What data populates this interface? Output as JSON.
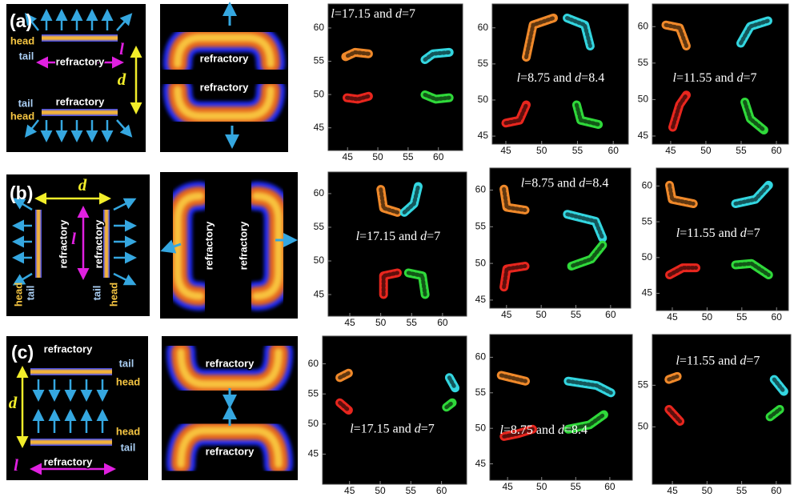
{
  "rows": [
    {
      "label": "(a)",
      "schematic": [
        "head",
        "tail",
        "refractory",
        "l",
        "d",
        "tail",
        "refractory",
        "head"
      ],
      "pattern": [
        "refractory",
        "refractory"
      ],
      "plots": [
        {
          "annotation": [
            {
              "text": "l",
              "italic": true
            },
            {
              "text": "=17.15 and "
            },
            {
              "text": "d",
              "italic": true
            },
            {
              "text": "=7"
            }
          ],
          "xlim": [
            41.8,
            64.0
          ],
          "ylim": [
            41.6,
            63.6
          ],
          "xticks": [
            45,
            50,
            55,
            60
          ],
          "yticks": [
            45,
            50,
            55,
            60
          ]
        },
        {
          "annotation": [
            {
              "text": "l",
              "italic": true
            },
            {
              "text": "=8.75 and "
            },
            {
              "text": "d",
              "italic": true
            },
            {
              "text": "=8.4"
            }
          ],
          "xlim": [
            43.1,
            62.1
          ],
          "ylim": [
            43.9,
            63.3
          ],
          "xticks": [
            45,
            50,
            55,
            60
          ],
          "yticks": [
            45,
            50,
            55,
            60
          ]
        },
        {
          "annotation": [
            {
              "text": "l",
              "italic": true
            },
            {
              "text": "=11.55 and "
            },
            {
              "text": "d",
              "italic": true
            },
            {
              "text": "=7"
            }
          ],
          "xlim": [
            42.4,
            61.7
          ],
          "ylim": [
            43.9,
            63.1
          ],
          "xticks": [
            45,
            50,
            55,
            60
          ],
          "yticks": [
            45,
            50,
            55,
            60
          ]
        }
      ]
    },
    {
      "label": "(b)",
      "schematic": [
        "d",
        "refractory",
        "refractory",
        "l",
        "head",
        "tail",
        "tail",
        "head"
      ],
      "pattern": [
        "refractory",
        "refractory"
      ],
      "plots": [
        {
          "annotation": [
            {
              "text": "l",
              "italic": true
            },
            {
              "text": "=17.15 and "
            },
            {
              "text": "d",
              "italic": true
            },
            {
              "text": "=7"
            }
          ],
          "xlim": [
            41.5,
            63.9
          ],
          "ylim": [
            41.8,
            63.2
          ],
          "xticks": [
            45,
            50,
            55,
            60
          ],
          "yticks": [
            45,
            50,
            55,
            60
          ]
        },
        {
          "annotation": [
            {
              "text": "l",
              "italic": true
            },
            {
              "text": "=8.75 and "
            },
            {
              "text": "d",
              "italic": true
            },
            {
              "text": "=8.4"
            }
          ],
          "xlim": [
            42.6,
            62.9
          ],
          "ylim": [
            43.9,
            63.0
          ],
          "xticks": [
            45,
            50,
            55,
            60
          ],
          "yticks": [
            45,
            50,
            55,
            60
          ]
        },
        {
          "annotation": [
            {
              "text": "l",
              "italic": true
            },
            {
              "text": "=11.55 and "
            },
            {
              "text": "d",
              "italic": true
            },
            {
              "text": "=7"
            }
          ],
          "xlim": [
            42.7,
            61.7
          ],
          "ylim": [
            42.6,
            62.5
          ],
          "xticks": [
            45,
            50,
            55,
            60
          ],
          "yticks": [
            45,
            50,
            55,
            60
          ]
        }
      ]
    },
    {
      "label": "(c)",
      "schematic": [
        "refractory",
        "tail",
        "head",
        "d",
        "head",
        "tail",
        "refractory",
        "l"
      ],
      "pattern": [
        "refractory",
        "refractory"
      ],
      "plots": [
        {
          "annotation": [
            {
              "text": "l",
              "italic": true
            },
            {
              "text": "=17.15 and "
            },
            {
              "text": "d",
              "italic": true
            },
            {
              "text": "=7"
            }
          ],
          "xlim": [
            40.6,
            64.1
          ],
          "ylim": [
            40.0,
            64.6
          ],
          "xticks": [
            45,
            50,
            55,
            60
          ],
          "yticks": [
            45,
            50,
            55,
            60
          ]
        },
        {
          "annotation": [
            {
              "text": "l",
              "italic": true
            },
            {
              "text": "=8.75 and "
            },
            {
              "text": "d",
              "italic": true
            },
            {
              "text": "=8.4"
            }
          ],
          "xlim": [
            42.4,
            63.3
          ],
          "ylim": [
            42.7,
            63.2
          ],
          "xticks": [
            45,
            50,
            55,
            60
          ],
          "yticks": [
            45,
            50,
            55,
            60
          ]
        },
        {
          "annotation": [
            {
              "text": "l",
              "italic": true
            },
            {
              "text": "=11.55 and "
            },
            {
              "text": "d",
              "italic": true
            },
            {
              "text": "=7"
            }
          ],
          "xlim": [
            42.1,
            62.1
          ],
          "ylim": [
            43.1,
            61.1
          ],
          "xticks": [
            45,
            50,
            55,
            60
          ],
          "yticks": [
            50,
            55
          ]
        }
      ]
    }
  ]
}
